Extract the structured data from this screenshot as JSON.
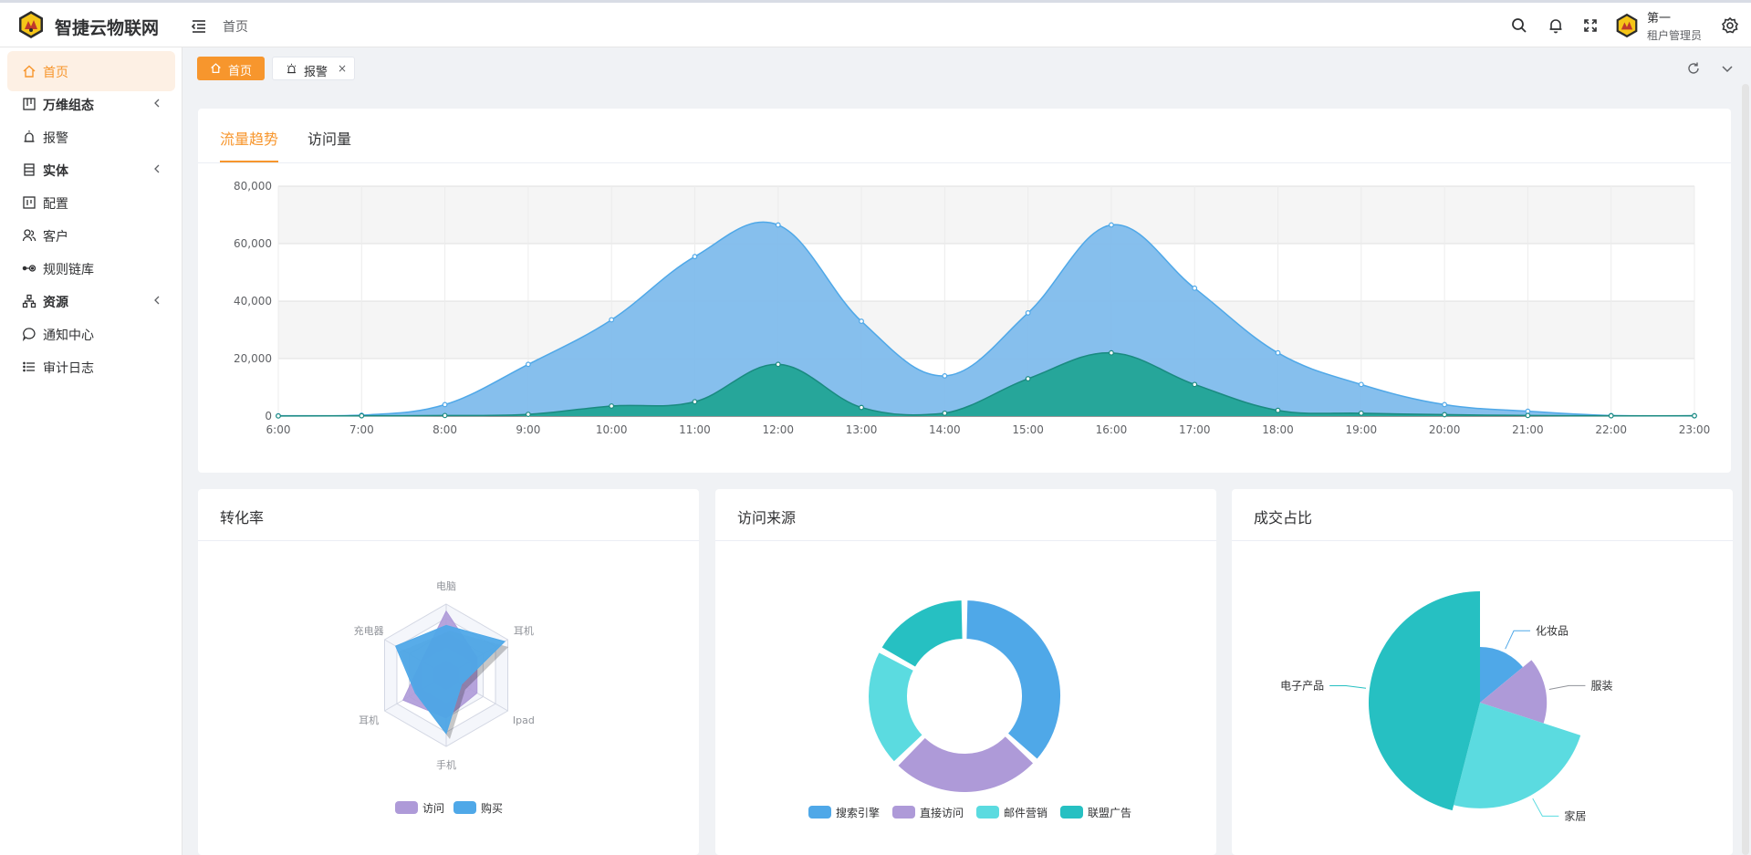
{
  "header": {
    "brand": "智捷云物联网",
    "breadcrumb": "首页",
    "user_name": "第一",
    "user_role": "租户管理员"
  },
  "sidebar": {
    "items": [
      {
        "label": "首页",
        "icon": "home-icon",
        "active": true,
        "expandable": false
      },
      {
        "label": "万维组态",
        "icon": "layout-icon",
        "active": false,
        "expandable": true
      },
      {
        "label": "报警",
        "icon": "alarm-icon",
        "active": false,
        "expandable": false
      },
      {
        "label": "实体",
        "icon": "entity-icon",
        "active": false,
        "expandable": true
      },
      {
        "label": "配置",
        "icon": "config-icon",
        "active": false,
        "expandable": false
      },
      {
        "label": "客户",
        "icon": "customer-icon",
        "active": false,
        "expandable": false
      },
      {
        "label": "规则链库",
        "icon": "rule-chain-icon",
        "active": false,
        "expandable": false
      },
      {
        "label": "资源",
        "icon": "resource-icon",
        "active": false,
        "expandable": true
      },
      {
        "label": "通知中心",
        "icon": "message-icon",
        "active": false,
        "expandable": false
      },
      {
        "label": "审计日志",
        "icon": "list-icon",
        "active": false,
        "expandable": false
      }
    ]
  },
  "tabs": {
    "home": "首页",
    "alarm": "报警",
    "close": "×"
  },
  "colors": {
    "accent": "#f7962d",
    "blue": "#4fa8e8",
    "teal": "#26a69a",
    "purple": "#ae9ad8",
    "cyan": "#5bdbe0",
    "dark_cyan": "#26c0c2"
  },
  "trend": {
    "tabs": [
      "流量趋势",
      "访问量"
    ],
    "chart_data": {
      "type": "area",
      "x": [
        "6:00",
        "7:00",
        "8:00",
        "9:00",
        "10:00",
        "11:00",
        "12:00",
        "13:00",
        "14:00",
        "15:00",
        "16:00",
        "17:00",
        "18:00",
        "19:00",
        "20:00",
        "21:00",
        "22:00",
        "23:00"
      ],
      "ylim": [
        0,
        80000
      ],
      "yticks": [
        0,
        20000,
        40000,
        60000,
        80000
      ],
      "ytick_labels": [
        "0",
        "20,000",
        "40,000",
        "60,000",
        "80,000"
      ],
      "series": [
        {
          "values": [
            100,
            300,
            4000,
            18000,
            33500,
            55500,
            66500,
            33000,
            14000,
            35900,
            66500,
            44500,
            22000,
            11000,
            4000,
            1700,
            200,
            100
          ]
        },
        {
          "values": [
            50,
            100,
            200,
            600,
            3500,
            5000,
            18000,
            3000,
            1000,
            13000,
            22000,
            11000,
            2000,
            1000,
            500,
            200,
            100,
            100
          ]
        }
      ]
    }
  },
  "conversion": {
    "title": "转化率",
    "chart_data": {
      "type": "radar",
      "indicators": [
        "电脑",
        "耳机",
        "Ipad",
        "手机",
        "耳机",
        "充电器"
      ],
      "max": 100,
      "series": [
        {
          "name": "访问",
          "values": [
            90,
            50,
            50,
            60,
            70,
            40
          ]
        },
        {
          "name": "购买",
          "values": [
            70,
            95,
            25,
            82,
            50,
            82
          ]
        }
      ]
    }
  },
  "source": {
    "title": "访问来源",
    "chart_data": {
      "type": "pie",
      "series": [
        {
          "categories": [
            "搜索引擎",
            "直接访问",
            "邮件营销",
            "联盟广告"
          ],
          "values": [
            1048,
            735,
            580,
            484
          ]
        }
      ]
    }
  },
  "deal": {
    "title": "成交占比",
    "chart_data": {
      "type": "pie",
      "categories": [
        "化妆品",
        "服装",
        "家居",
        "电子产品"
      ],
      "values": [
        14,
        16,
        24,
        46
      ],
      "radius_ratio": [
        0.5,
        0.6,
        0.95,
        1.0
      ]
    }
  }
}
